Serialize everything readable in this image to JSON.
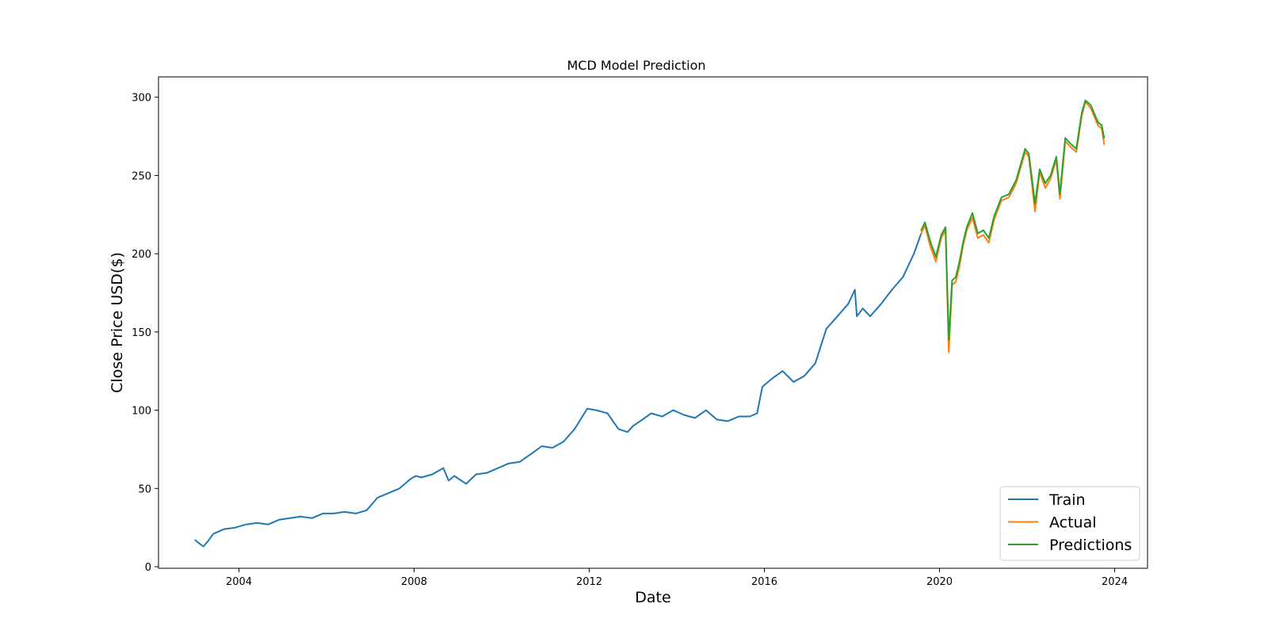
{
  "chart_data": {
    "type": "line",
    "title": "MCD Model Prediction",
    "xlabel": "Date",
    "ylabel": "Close Price USD($)",
    "x_is_date": true,
    "xlim": [
      "2002-03-01",
      "2024-10-01"
    ],
    "ylim": [
      -1,
      313
    ],
    "x_ticks": [
      "2004",
      "2008",
      "2012",
      "2016",
      "2020",
      "2024"
    ],
    "y_ticks": [
      0,
      50,
      100,
      150,
      200,
      250,
      300
    ],
    "grid": false,
    "legend_position": "bottom-right",
    "series": [
      {
        "name": "Train",
        "color": "#1f77b4",
        "x": [
          "2003-01-02",
          "2003-02-01",
          "2003-03-10",
          "2003-04-15",
          "2003-06-01",
          "2003-09-01",
          "2003-12-01",
          "2004-03-01",
          "2004-06-01",
          "2004-09-01",
          "2004-12-01",
          "2005-03-01",
          "2005-06-01",
          "2005-09-01",
          "2005-12-01",
          "2006-03-01",
          "2006-06-01",
          "2006-09-01",
          "2006-12-01",
          "2007-03-01",
          "2007-06-01",
          "2007-09-01",
          "2007-12-01",
          "2008-01-15",
          "2008-03-01",
          "2008-06-01",
          "2008-09-01",
          "2008-10-15",
          "2008-12-01",
          "2009-03-10",
          "2009-06-01",
          "2009-09-01",
          "2009-12-01",
          "2010-03-01",
          "2010-06-01",
          "2010-09-01",
          "2010-12-01",
          "2011-03-01",
          "2011-06-01",
          "2011-09-01",
          "2011-12-15",
          "2012-03-01",
          "2012-06-01",
          "2012-09-01",
          "2012-11-15",
          "2013-01-01",
          "2013-03-01",
          "2013-06-01",
          "2013-09-01",
          "2013-12-01",
          "2014-03-01",
          "2014-06-01",
          "2014-09-01",
          "2014-12-01",
          "2015-03-01",
          "2015-06-01",
          "2015-09-01",
          "2015-11-01",
          "2015-12-15",
          "2016-03-01",
          "2016-06-01",
          "2016-09-01",
          "2016-12-01",
          "2017-03-01",
          "2017-06-01",
          "2017-09-01",
          "2017-12-01",
          "2018-01-25",
          "2018-02-10",
          "2018-04-01",
          "2018-06-01",
          "2018-09-01",
          "2018-12-01",
          "2019-03-01",
          "2019-06-01",
          "2019-08-01"
        ],
        "y": [
          17,
          15,
          13,
          16,
          21,
          24,
          25,
          27,
          28,
          27,
          30,
          31,
          32,
          31,
          34,
          34,
          35,
          34,
          36,
          44,
          47,
          50,
          56,
          58,
          57,
          59,
          63,
          55,
          58,
          53,
          59,
          60,
          63,
          66,
          67,
          72,
          77,
          76,
          80,
          88,
          101,
          100,
          98,
          88,
          86,
          90,
          93,
          98,
          96,
          100,
          97,
          95,
          100,
          94,
          93,
          96,
          96,
          98,
          115,
          120,
          125,
          118,
          122,
          130,
          152,
          160,
          168,
          177,
          160,
          165,
          160,
          168,
          177,
          185,
          200,
          213
        ]
      },
      {
        "name": "Actual",
        "color": "#ff7f0e",
        "x": [
          "2019-08-01",
          "2019-09-01",
          "2019-10-15",
          "2019-12-01",
          "2020-01-15",
          "2020-02-20",
          "2020-03-18",
          "2020-04-15",
          "2020-05-15",
          "2020-06-15",
          "2020-07-15",
          "2020-08-15",
          "2020-10-01",
          "2020-11-15",
          "2021-01-01",
          "2021-02-15",
          "2021-04-01",
          "2021-06-01",
          "2021-08-01",
          "2021-10-01",
          "2021-12-15",
          "2022-01-15",
          "2022-03-07",
          "2022-04-15",
          "2022-06-01",
          "2022-07-15",
          "2022-09-01",
          "2022-10-01",
          "2022-11-15",
          "2023-01-01",
          "2023-02-15",
          "2023-04-01",
          "2023-05-01",
          "2023-06-15",
          "2023-08-15",
          "2023-09-15",
          "2023-10-05"
        ],
        "y": [
          213,
          218,
          205,
          195,
          210,
          215,
          137,
          180,
          182,
          192,
          205,
          215,
          223,
          210,
          212,
          207,
          222,
          234,
          236,
          245,
          265,
          262,
          227,
          252,
          242,
          248,
          260,
          235,
          272,
          268,
          265,
          288,
          297,
          293,
          282,
          280,
          270
        ]
      },
      {
        "name": "Predictions",
        "color": "#2ca02c",
        "x": [
          "2019-08-01",
          "2019-09-01",
          "2019-10-15",
          "2019-12-01",
          "2020-01-15",
          "2020-02-20",
          "2020-03-18",
          "2020-04-15",
          "2020-05-15",
          "2020-06-15",
          "2020-07-15",
          "2020-08-15",
          "2020-10-01",
          "2020-11-15",
          "2021-01-01",
          "2021-02-15",
          "2021-04-01",
          "2021-06-01",
          "2021-08-01",
          "2021-10-01",
          "2021-12-15",
          "2022-01-15",
          "2022-03-07",
          "2022-04-15",
          "2022-06-01",
          "2022-07-15",
          "2022-09-01",
          "2022-10-01",
          "2022-11-15",
          "2023-01-01",
          "2023-02-15",
          "2023-04-01",
          "2023-05-01",
          "2023-06-15",
          "2023-08-15",
          "2023-09-15",
          "2023-10-05"
        ],
        "y": [
          215,
          220,
          208,
          198,
          212,
          217,
          145,
          183,
          185,
          195,
          207,
          217,
          226,
          213,
          215,
          210,
          224,
          236,
          238,
          247,
          267,
          264,
          232,
          254,
          245,
          250,
          262,
          238,
          274,
          270,
          267,
          290,
          298,
          295,
          284,
          282,
          274
        ]
      }
    ]
  }
}
